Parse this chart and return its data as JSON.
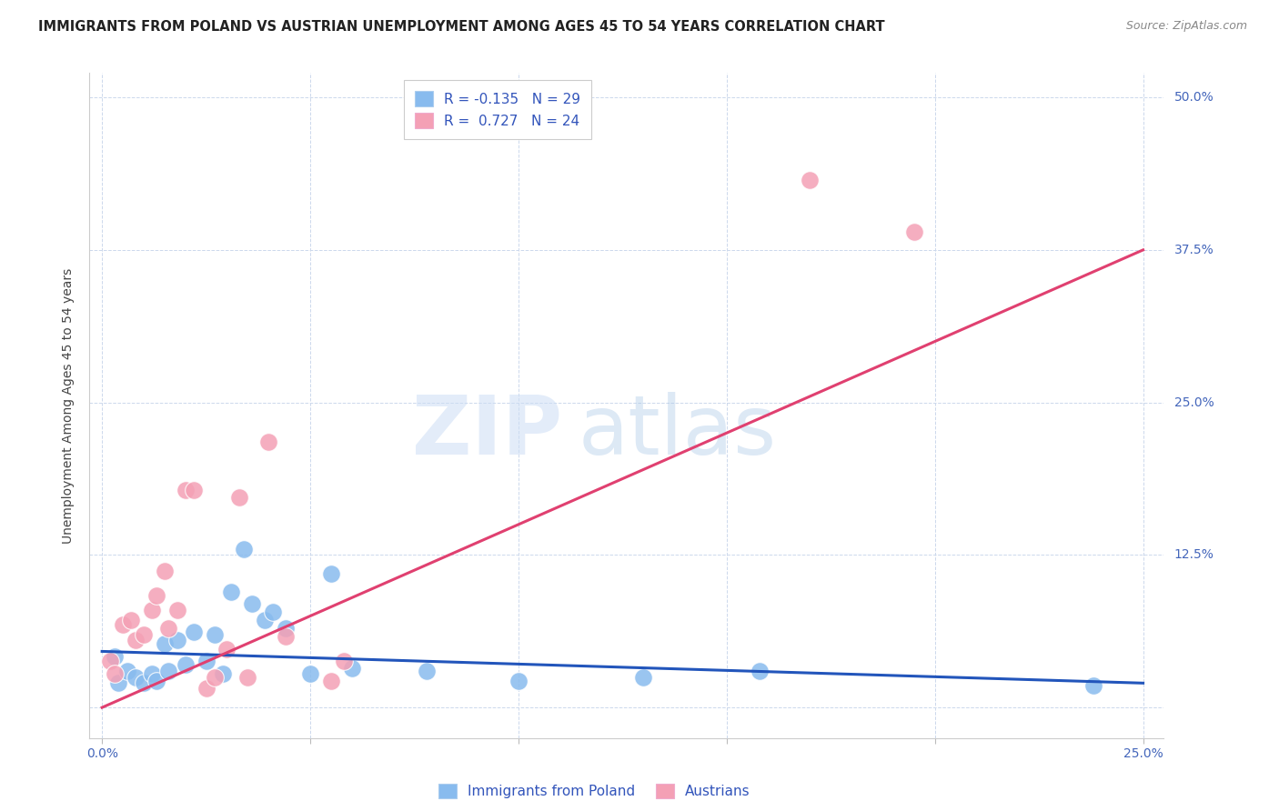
{
  "title": "IMMIGRANTS FROM POLAND VS AUSTRIAN UNEMPLOYMENT AMONG AGES 45 TO 54 YEARS CORRELATION CHART",
  "source": "Source: ZipAtlas.com",
  "ylabel": "Unemployment Among Ages 45 to 54 years",
  "xlim": [
    -0.003,
    0.255
  ],
  "ylim": [
    -0.025,
    0.52
  ],
  "plot_xlim": [
    0.0,
    0.25
  ],
  "plot_ylim": [
    0.0,
    0.5
  ],
  "xticks": [
    0.0,
    0.05,
    0.1,
    0.15,
    0.2,
    0.25
  ],
  "yticks": [
    0.0,
    0.125,
    0.25,
    0.375,
    0.5
  ],
  "xticklabels": [
    "0.0%",
    "",
    "",
    "",
    "",
    "25.0%"
  ],
  "yticklabels_right": [
    "",
    "12.5%",
    "25.0%",
    "37.5%",
    "50.0%"
  ],
  "legend1_label": "R = -0.135   N = 29",
  "legend2_label": "R =  0.727   N = 24",
  "color_blue": "#88bbee",
  "color_pink": "#f4a0b5",
  "line_blue": "#2255bb",
  "line_pink": "#e04070",
  "blue_points": [
    [
      0.003,
      0.042
    ],
    [
      0.004,
      0.02
    ],
    [
      0.006,
      0.03
    ],
    [
      0.008,
      0.025
    ],
    [
      0.01,
      0.02
    ],
    [
      0.012,
      0.028
    ],
    [
      0.013,
      0.022
    ],
    [
      0.015,
      0.052
    ],
    [
      0.016,
      0.03
    ],
    [
      0.018,
      0.055
    ],
    [
      0.02,
      0.035
    ],
    [
      0.022,
      0.062
    ],
    [
      0.025,
      0.038
    ],
    [
      0.027,
      0.06
    ],
    [
      0.029,
      0.028
    ],
    [
      0.031,
      0.095
    ],
    [
      0.034,
      0.13
    ],
    [
      0.036,
      0.085
    ],
    [
      0.039,
      0.072
    ],
    [
      0.041,
      0.078
    ],
    [
      0.044,
      0.065
    ],
    [
      0.05,
      0.028
    ],
    [
      0.055,
      0.11
    ],
    [
      0.06,
      0.032
    ],
    [
      0.078,
      0.03
    ],
    [
      0.1,
      0.022
    ],
    [
      0.13,
      0.025
    ],
    [
      0.158,
      0.03
    ],
    [
      0.238,
      0.018
    ]
  ],
  "pink_points": [
    [
      0.002,
      0.038
    ],
    [
      0.003,
      0.028
    ],
    [
      0.005,
      0.068
    ],
    [
      0.007,
      0.072
    ],
    [
      0.008,
      0.055
    ],
    [
      0.01,
      0.06
    ],
    [
      0.012,
      0.08
    ],
    [
      0.013,
      0.092
    ],
    [
      0.015,
      0.112
    ],
    [
      0.016,
      0.065
    ],
    [
      0.018,
      0.08
    ],
    [
      0.02,
      0.178
    ],
    [
      0.022,
      0.178
    ],
    [
      0.025,
      0.016
    ],
    [
      0.027,
      0.025
    ],
    [
      0.03,
      0.048
    ],
    [
      0.033,
      0.172
    ],
    [
      0.035,
      0.025
    ],
    [
      0.04,
      0.218
    ],
    [
      0.044,
      0.058
    ],
    [
      0.055,
      0.022
    ],
    [
      0.17,
      0.432
    ],
    [
      0.195,
      0.39
    ],
    [
      0.058,
      0.038
    ]
  ],
  "blue_line_x": [
    0.0,
    0.25
  ],
  "blue_line_y": [
    0.046,
    0.02
  ],
  "pink_line_x": [
    0.0,
    0.25
  ],
  "pink_line_y": [
    0.0,
    0.375
  ],
  "background_color": "#ffffff",
  "grid_color": "#ccd8ec",
  "title_fontsize": 10.5,
  "tick_fontsize": 10,
  "legend_fontsize": 11
}
